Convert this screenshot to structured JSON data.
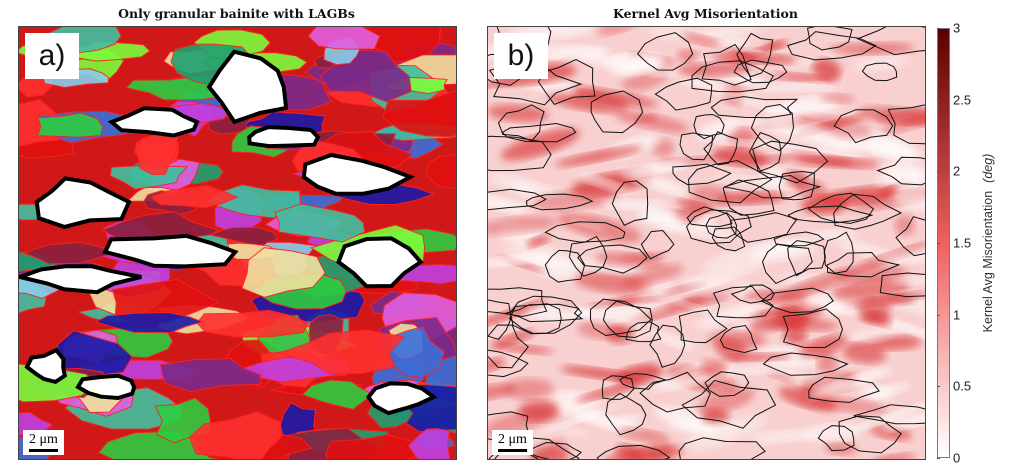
{
  "panel_a": {
    "title": "Only granular bainite with LAGBs",
    "label": "a)",
    "scale_bar": "2 μm"
  },
  "panel_b": {
    "title": "Kernel Avg Misorientation",
    "label": "b)",
    "scale_bar": "2 μm"
  },
  "colorbar": {
    "label": "Kernel Avg Misorientation",
    "unit": "(deg)",
    "range": [
      0,
      3
    ],
    "ticks": [
      "0",
      "0.5",
      "1",
      "1.5",
      "2",
      "2.5",
      "3"
    ],
    "color_low": "#ffffff",
    "color_mid": "#f06060",
    "color_high": "#5a0000"
  }
}
